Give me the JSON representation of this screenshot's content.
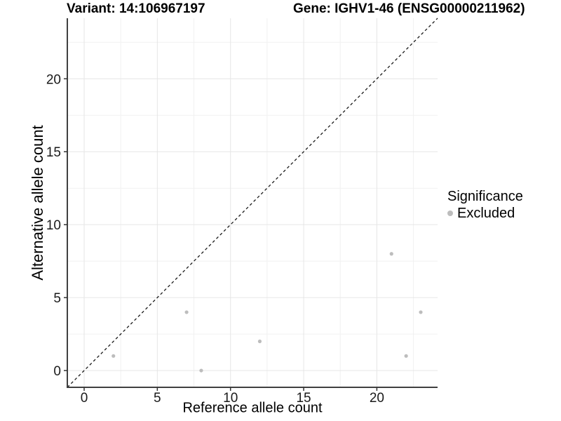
{
  "chart_data": {
    "type": "scatter",
    "titles": {
      "left": "Variant: 14:106967197",
      "right": "Gene: IGHV1-46 (ENSG00000211962)"
    },
    "xlabel": "Reference allele count",
    "ylabel": "Alternative allele count",
    "xlim": [
      -1.15,
      24.15
    ],
    "ylim": [
      -1.15,
      24.15
    ],
    "x_major_ticks": [
      0,
      5,
      10,
      15,
      20
    ],
    "y_major_ticks": [
      0,
      5,
      10,
      15,
      20
    ],
    "x_minor_gridlines": [
      2.5,
      7.5,
      12.5,
      17.5,
      22.5
    ],
    "y_minor_gridlines": [
      2.5,
      7.5,
      12.5,
      17.5,
      22.5
    ],
    "grid": true,
    "identity_line": {
      "style": "dashed",
      "slope": 1,
      "intercept": 0
    },
    "series": [
      {
        "name": "Excluded",
        "color": "#bdbdbd",
        "points": [
          [
            2,
            1
          ],
          [
            7,
            4
          ],
          [
            8,
            0
          ],
          [
            12,
            2
          ],
          [
            21,
            8
          ],
          [
            22,
            1
          ],
          [
            23,
            4
          ]
        ]
      }
    ],
    "legend": {
      "title": "Significance",
      "position": "right",
      "items": [
        {
          "label": "Excluded",
          "color": "#bdbdbd"
        }
      ]
    }
  },
  "colors": {
    "background": "#ffffff",
    "grid_major": "#e6e6e6",
    "grid_minor": "#f1f1f1",
    "axis_line": "#404040",
    "tick_mark": "#333333",
    "tick_text": "#1a1a1a",
    "dashed_line": "#1a1a1a",
    "point": "#bdbdbd"
  }
}
